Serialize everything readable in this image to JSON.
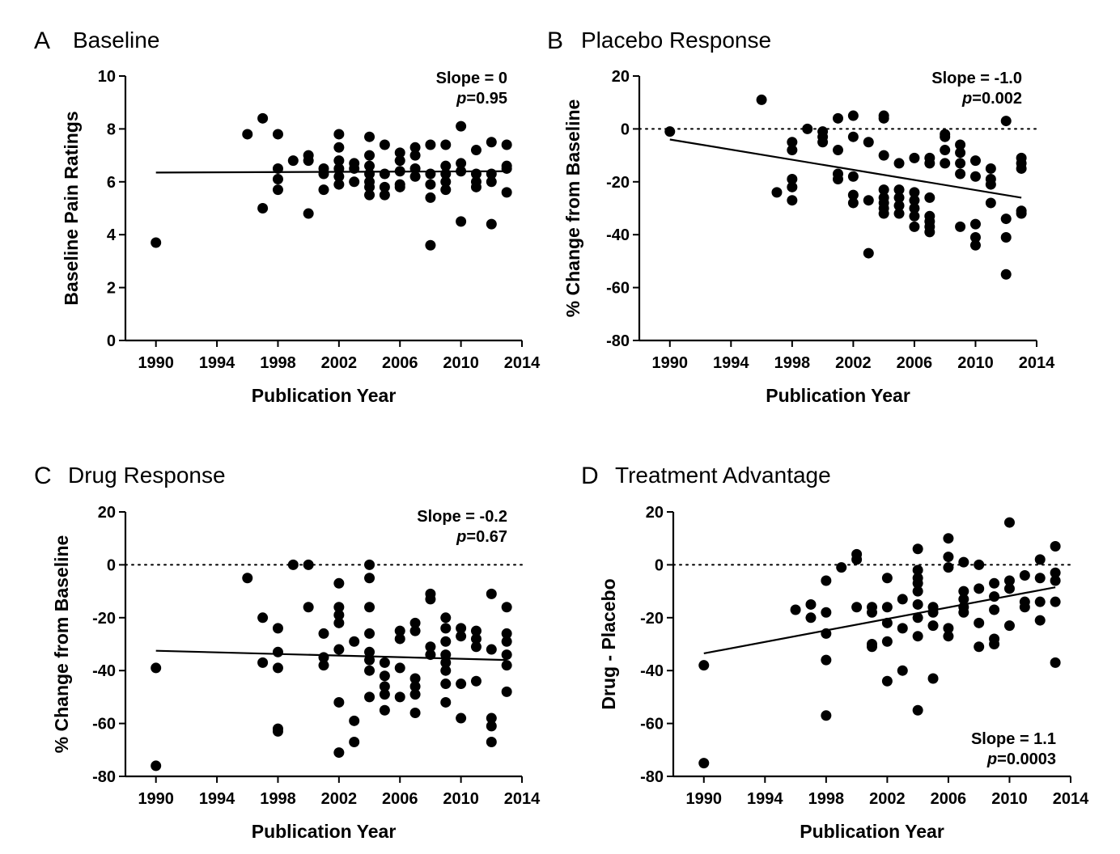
{
  "chart_data": [
    {
      "type": "scatter",
      "panel": "A",
      "title": "Baseline",
      "xlabel": "Publication Year",
      "ylabel": "Baseline Pain Ratings",
      "xlim": [
        1988,
        2014
      ],
      "ylim": [
        0,
        10
      ],
      "xticks": [
        1990,
        1994,
        1998,
        2002,
        2006,
        2010,
        2014
      ],
      "yticks": [
        0,
        2,
        4,
        6,
        8,
        10
      ],
      "zero_line": false,
      "slope_text": "Slope = 0",
      "p_label": "p",
      "p_value": "=0.95",
      "annotation_position": "top-right",
      "fit_line": {
        "x": [
          1990,
          2013
        ],
        "y": [
          6.35,
          6.4
        ]
      },
      "points": [
        [
          1990,
          3.7
        ],
        [
          1996,
          7.8
        ],
        [
          1997,
          8.4
        ],
        [
          1997,
          5.0
        ],
        [
          1998,
          7.8
        ],
        [
          1998,
          6.5
        ],
        [
          1998,
          6.1
        ],
        [
          1998,
          5.7
        ],
        [
          1999,
          6.8
        ],
        [
          2000,
          7.0
        ],
        [
          2000,
          6.8
        ],
        [
          2000,
          4.8
        ],
        [
          2001,
          6.5
        ],
        [
          2001,
          6.3
        ],
        [
          2001,
          5.7
        ],
        [
          2002,
          7.8
        ],
        [
          2002,
          7.3
        ],
        [
          2002,
          6.8
        ],
        [
          2002,
          6.5
        ],
        [
          2002,
          6.2
        ],
        [
          2002,
          5.9
        ],
        [
          2003,
          6.7
        ],
        [
          2003,
          6.5
        ],
        [
          2003,
          6.0
        ],
        [
          2004,
          7.7
        ],
        [
          2004,
          7.0
        ],
        [
          2004,
          6.6
        ],
        [
          2004,
          6.3
        ],
        [
          2004,
          6.0
        ],
        [
          2004,
          5.8
        ],
        [
          2004,
          5.5
        ],
        [
          2005,
          7.4
        ],
        [
          2005,
          6.3
        ],
        [
          2005,
          5.8
        ],
        [
          2005,
          5.5
        ],
        [
          2006,
          7.1
        ],
        [
          2006,
          6.8
        ],
        [
          2006,
          6.4
        ],
        [
          2006,
          5.9
        ],
        [
          2006,
          5.8
        ],
        [
          2007,
          7.3
        ],
        [
          2007,
          7.0
        ],
        [
          2007,
          6.5
        ],
        [
          2007,
          6.2
        ],
        [
          2008,
          7.4
        ],
        [
          2008,
          6.3
        ],
        [
          2008,
          5.9
        ],
        [
          2008,
          5.4
        ],
        [
          2008,
          3.6
        ],
        [
          2009,
          7.4
        ],
        [
          2009,
          6.6
        ],
        [
          2009,
          6.3
        ],
        [
          2009,
          6.0
        ],
        [
          2009,
          5.7
        ],
        [
          2010,
          8.1
        ],
        [
          2010,
          6.7
        ],
        [
          2010,
          6.4
        ],
        [
          2010,
          4.5
        ],
        [
          2011,
          7.2
        ],
        [
          2011,
          6.3
        ],
        [
          2011,
          6.0
        ],
        [
          2011,
          5.8
        ],
        [
          2012,
          7.5
        ],
        [
          2012,
          6.3
        ],
        [
          2012,
          6.0
        ],
        [
          2012,
          4.4
        ],
        [
          2013,
          7.4
        ],
        [
          2013,
          6.6
        ],
        [
          2013,
          6.5
        ],
        [
          2013,
          5.6
        ]
      ]
    },
    {
      "type": "scatter",
      "panel": "B",
      "title": "Placebo Response",
      "xlabel": "Publication Year",
      "ylabel": "% Change from Baseline",
      "xlim": [
        1988,
        2014
      ],
      "ylim": [
        -80,
        20
      ],
      "xticks": [
        1990,
        1994,
        1998,
        2002,
        2006,
        2010,
        2014
      ],
      "yticks": [
        -80,
        -60,
        -40,
        -20,
        0,
        20
      ],
      "zero_line": true,
      "slope_text": "Slope = -1.0",
      "p_label": "p",
      "p_value": "=0.002",
      "annotation_position": "top-right",
      "fit_line": {
        "x": [
          1990,
          2013
        ],
        "y": [
          -4.0,
          -26.0
        ]
      },
      "points": [
        [
          1990,
          -1
        ],
        [
          1996,
          11
        ],
        [
          1997,
          -24
        ],
        [
          1998,
          -5
        ],
        [
          1998,
          -8
        ],
        [
          1998,
          -19
        ],
        [
          1998,
          -22
        ],
        [
          1998,
          -27
        ],
        [
          1999,
          0
        ],
        [
          2000,
          -1
        ],
        [
          2000,
          -3
        ],
        [
          2000,
          -5
        ],
        [
          2001,
          4
        ],
        [
          2001,
          -8
        ],
        [
          2001,
          -17
        ],
        [
          2001,
          -19
        ],
        [
          2002,
          5
        ],
        [
          2002,
          -3
        ],
        [
          2002,
          -18
        ],
        [
          2002,
          -25
        ],
        [
          2002,
          -28
        ],
        [
          2003,
          -5
        ],
        [
          2003,
          -27
        ],
        [
          2003,
          -47
        ],
        [
          2004,
          5
        ],
        [
          2004,
          4
        ],
        [
          2004,
          -10
        ],
        [
          2004,
          -23
        ],
        [
          2004,
          -26
        ],
        [
          2004,
          -28
        ],
        [
          2004,
          -30
        ],
        [
          2004,
          -32
        ],
        [
          2005,
          -13
        ],
        [
          2005,
          -23
        ],
        [
          2005,
          -26
        ],
        [
          2005,
          -29
        ],
        [
          2005,
          -32
        ],
        [
          2006,
          -11
        ],
        [
          2006,
          -24
        ],
        [
          2006,
          -27
        ],
        [
          2006,
          -30
        ],
        [
          2006,
          -33
        ],
        [
          2006,
          -37
        ],
        [
          2007,
          -11
        ],
        [
          2007,
          -13
        ],
        [
          2007,
          -26
        ],
        [
          2007,
          -33
        ],
        [
          2007,
          -35
        ],
        [
          2007,
          -37
        ],
        [
          2007,
          -39
        ],
        [
          2008,
          -2
        ],
        [
          2008,
          -3
        ],
        [
          2008,
          -8
        ],
        [
          2008,
          -13
        ],
        [
          2009,
          -6
        ],
        [
          2009,
          -9
        ],
        [
          2009,
          -13
        ],
        [
          2009,
          -17
        ],
        [
          2009,
          -37
        ],
        [
          2010,
          -12
        ],
        [
          2010,
          -18
        ],
        [
          2010,
          -36
        ],
        [
          2010,
          -41
        ],
        [
          2010,
          -44
        ],
        [
          2011,
          -15
        ],
        [
          2011,
          -19
        ],
        [
          2011,
          -21
        ],
        [
          2011,
          -28
        ],
        [
          2012,
          3
        ],
        [
          2012,
          -34
        ],
        [
          2012,
          -41
        ],
        [
          2012,
          -55
        ],
        [
          2013,
          -11
        ],
        [
          2013,
          -13
        ],
        [
          2013,
          -15
        ],
        [
          2013,
          -31
        ],
        [
          2013,
          -32
        ]
      ]
    },
    {
      "type": "scatter",
      "panel": "C",
      "title": "Drug Response",
      "xlabel": "Publication Year",
      "ylabel": "% Change from Baseline",
      "xlim": [
        1988,
        2014
      ],
      "ylim": [
        -80,
        20
      ],
      "xticks": [
        1990,
        1994,
        1998,
        2002,
        2006,
        2010,
        2014
      ],
      "yticks": [
        -80,
        -60,
        -40,
        -20,
        0,
        20
      ],
      "zero_line": true,
      "slope_text": "Slope = -0.2",
      "p_label": "p",
      "p_value": "=0.67",
      "annotation_position": "top-right",
      "fit_line": {
        "x": [
          1990,
          2013
        ],
        "y": [
          -32.5,
          -36.0
        ]
      },
      "points": [
        [
          1990,
          -39
        ],
        [
          1990,
          -76
        ],
        [
          1996,
          -5
        ],
        [
          1997,
          -20
        ],
        [
          1997,
          -37
        ],
        [
          1998,
          -24
        ],
        [
          1998,
          -33
        ],
        [
          1998,
          -39
        ],
        [
          1998,
          -62
        ],
        [
          1998,
          -63
        ],
        [
          1999,
          0
        ],
        [
          2000,
          0
        ],
        [
          2000,
          -16
        ],
        [
          2001,
          -26
        ],
        [
          2001,
          -35
        ],
        [
          2001,
          -38
        ],
        [
          2002,
          -7
        ],
        [
          2002,
          -16
        ],
        [
          2002,
          -19
        ],
        [
          2002,
          -22
        ],
        [
          2002,
          -32
        ],
        [
          2002,
          -52
        ],
        [
          2002,
          -71
        ],
        [
          2003,
          -29
        ],
        [
          2003,
          -59
        ],
        [
          2003,
          -67
        ],
        [
          2004,
          0
        ],
        [
          2004,
          -5
        ],
        [
          2004,
          -16
        ],
        [
          2004,
          -26
        ],
        [
          2004,
          -33
        ],
        [
          2004,
          -36
        ],
        [
          2004,
          -40
        ],
        [
          2004,
          -50
        ],
        [
          2005,
          -37
        ],
        [
          2005,
          -42
        ],
        [
          2005,
          -46
        ],
        [
          2005,
          -49
        ],
        [
          2005,
          -55
        ],
        [
          2006,
          -25
        ],
        [
          2006,
          -28
        ],
        [
          2006,
          -39
        ],
        [
          2006,
          -50
        ],
        [
          2007,
          -22
        ],
        [
          2007,
          -25
        ],
        [
          2007,
          -43
        ],
        [
          2007,
          -46
        ],
        [
          2007,
          -49
        ],
        [
          2007,
          -56
        ],
        [
          2008,
          -11
        ],
        [
          2008,
          -13
        ],
        [
          2008,
          -31
        ],
        [
          2008,
          -34
        ],
        [
          2009,
          -20
        ],
        [
          2009,
          -24
        ],
        [
          2009,
          -29
        ],
        [
          2009,
          -34
        ],
        [
          2009,
          -37
        ],
        [
          2009,
          -40
        ],
        [
          2009,
          -45
        ],
        [
          2009,
          -52
        ],
        [
          2010,
          -24
        ],
        [
          2010,
          -27
        ],
        [
          2010,
          -45
        ],
        [
          2010,
          -58
        ],
        [
          2011,
          -25
        ],
        [
          2011,
          -28
        ],
        [
          2011,
          -31
        ],
        [
          2011,
          -44
        ],
        [
          2012,
          -11
        ],
        [
          2012,
          -32
        ],
        [
          2012,
          -58
        ],
        [
          2012,
          -61
        ],
        [
          2012,
          -67
        ],
        [
          2013,
          -16
        ],
        [
          2013,
          -26
        ],
        [
          2013,
          -29
        ],
        [
          2013,
          -34
        ],
        [
          2013,
          -38
        ],
        [
          2013,
          -48
        ]
      ]
    },
    {
      "type": "scatter",
      "panel": "D",
      "title": "Treatment Advantage",
      "xlabel": "Publication Year",
      "ylabel": "Drug - Placebo",
      "xlim": [
        1988,
        2014
      ],
      "ylim": [
        -80,
        20
      ],
      "xticks": [
        1990,
        1994,
        1998,
        2002,
        2006,
        2010,
        2014
      ],
      "yticks": [
        -80,
        -60,
        -40,
        -20,
        0,
        20
      ],
      "zero_line": true,
      "slope_text": "Slope = 1.1",
      "p_label": "p",
      "p_value": "=0.0003",
      "annotation_position": "bottom-right",
      "fit_line": {
        "x": [
          1990,
          2013
        ],
        "y": [
          -33.5,
          -8.5
        ]
      },
      "points": [
        [
          1990,
          -38
        ],
        [
          1990,
          -75
        ],
        [
          1996,
          -17
        ],
        [
          1997,
          -15
        ],
        [
          1997,
          -20
        ],
        [
          1998,
          -6
        ],
        [
          1998,
          -18
        ],
        [
          1998,
          -26
        ],
        [
          1998,
          -36
        ],
        [
          1998,
          -57
        ],
        [
          1999,
          -1
        ],
        [
          2000,
          4
        ],
        [
          2000,
          2
        ],
        [
          2000,
          -16
        ],
        [
          2001,
          -16
        ],
        [
          2001,
          -18
        ],
        [
          2001,
          -30
        ],
        [
          2001,
          -31
        ],
        [
          2002,
          -5
        ],
        [
          2002,
          -16
        ],
        [
          2002,
          -22
        ],
        [
          2002,
          -29
        ],
        [
          2002,
          -44
        ],
        [
          2003,
          -13
        ],
        [
          2003,
          -24
        ],
        [
          2003,
          -40
        ],
        [
          2004,
          6
        ],
        [
          2004,
          -2
        ],
        [
          2004,
          -5
        ],
        [
          2004,
          -7
        ],
        [
          2004,
          -10
        ],
        [
          2004,
          -15
        ],
        [
          2004,
          -20
        ],
        [
          2004,
          -27
        ],
        [
          2004,
          -55
        ],
        [
          2005,
          -16
        ],
        [
          2005,
          -18
        ],
        [
          2005,
          -23
        ],
        [
          2005,
          -43
        ],
        [
          2006,
          10
        ],
        [
          2006,
          3
        ],
        [
          2006,
          -1
        ],
        [
          2006,
          -24
        ],
        [
          2006,
          -27
        ],
        [
          2007,
          1
        ],
        [
          2007,
          -10
        ],
        [
          2007,
          -13
        ],
        [
          2007,
          -16
        ],
        [
          2007,
          -18
        ],
        [
          2008,
          0
        ],
        [
          2008,
          -9
        ],
        [
          2008,
          -22
        ],
        [
          2008,
          -31
        ],
        [
          2009,
          -7
        ],
        [
          2009,
          -12
        ],
        [
          2009,
          -17
        ],
        [
          2009,
          -28
        ],
        [
          2009,
          -30
        ],
        [
          2010,
          16
        ],
        [
          2010,
          -6
        ],
        [
          2010,
          -9
        ],
        [
          2010,
          -23
        ],
        [
          2011,
          -4
        ],
        [
          2011,
          -14
        ],
        [
          2011,
          -16
        ],
        [
          2012,
          2
        ],
        [
          2012,
          -5
        ],
        [
          2012,
          -14
        ],
        [
          2012,
          -21
        ],
        [
          2013,
          7
        ],
        [
          2013,
          -3
        ],
        [
          2013,
          -6
        ],
        [
          2013,
          -14
        ],
        [
          2013,
          -37
        ]
      ]
    }
  ]
}
